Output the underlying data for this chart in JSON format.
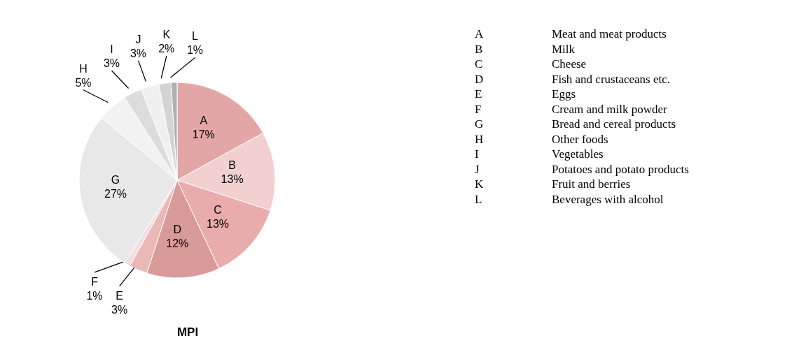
{
  "chart_data": {
    "type": "pie",
    "title": "MPI",
    "categories": [
      "A",
      "B",
      "C",
      "D",
      "E",
      "F",
      "G",
      "H",
      "I",
      "J",
      "K",
      "L"
    ],
    "values": [
      17,
      13,
      13,
      12,
      3,
      1,
      27,
      5,
      3,
      3,
      2,
      1
    ],
    "colors": [
      "#e2a6a6",
      "#f3d0d0",
      "#e8acac",
      "#d99a9a",
      "#ebb8b8",
      "#f6dede",
      "#e8e8e8",
      "#f2f2f2",
      "#dcdcdc",
      "#f0f0f0",
      "#d4d4d4",
      "#b0b0b0"
    ],
    "value_labels": [
      "17%",
      "13%",
      "13%",
      "12%",
      "3%",
      "1%",
      "27%",
      "5%",
      "3%",
      "3%",
      "2%",
      "1%"
    ],
    "annotations": [
      "Meat and meat products",
      "Milk",
      "Cheese",
      "Fish and crustaceans etc.",
      "Eggs",
      "Cream and milk powder",
      "Bread and cereal products",
      "Other foods",
      "Vegetables",
      "Potatoes and potato products",
      "Fruit and berries",
      "Beverages with alcohol"
    ]
  }
}
